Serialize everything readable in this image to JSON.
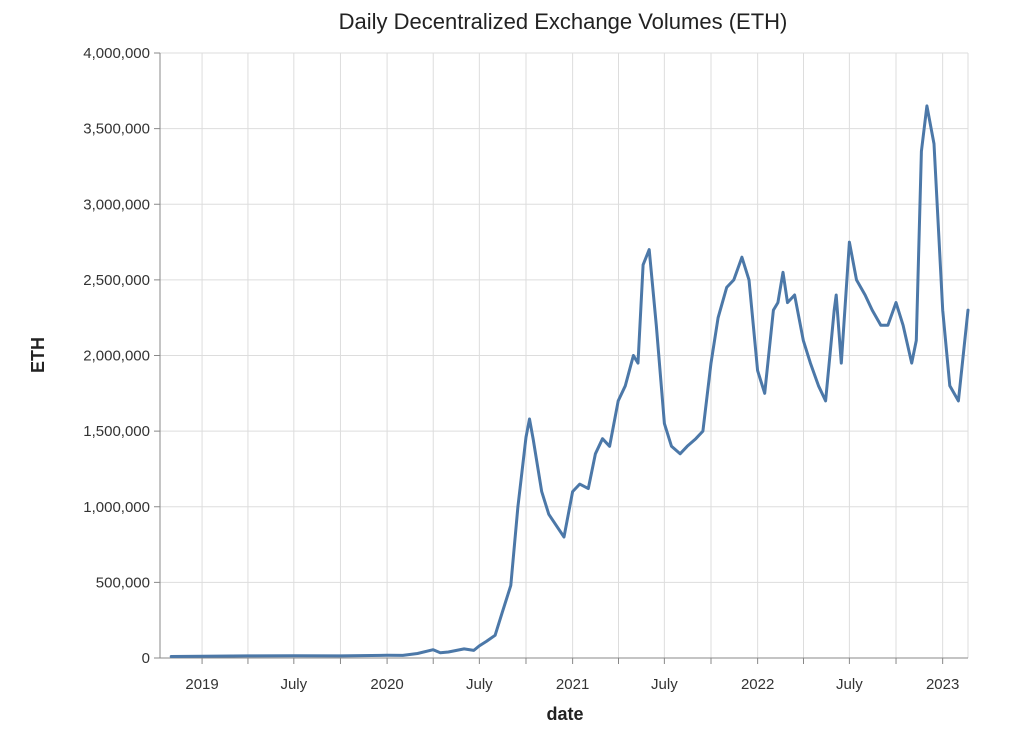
{
  "chart_data": {
    "type": "line",
    "title": "Daily Decentralized Exchange Volumes (ETH)",
    "xlabel": "date",
    "ylabel": "ETH",
    "xlim": [
      "2018-10-10",
      "2023-02-20"
    ],
    "ylim": [
      0,
      4000000
    ],
    "y_ticks": [
      0,
      500000,
      1000000,
      1500000,
      2000000,
      2500000,
      3000000,
      3500000,
      4000000
    ],
    "y_tick_labels": [
      "0",
      "500,000",
      "1,000,000",
      "1,500,000",
      "2,000,000",
      "2,500,000",
      "3,000,000",
      "3,500,000",
      "4,000,000"
    ],
    "x_ticks": [
      "2019-01-01",
      "2019-07-01",
      "2020-01-01",
      "2020-07-01",
      "2021-01-01",
      "2021-07-01",
      "2022-01-01",
      "2022-07-01",
      "2023-01-01"
    ],
    "x_tick_labels": [
      "2019",
      "July",
      "2020",
      "July",
      "2021",
      "July",
      "2022",
      "July",
      "2023"
    ],
    "grid": true,
    "series_color": "#4c78a8",
    "series": [
      {
        "x": [
          "2018-11-01",
          "2019-01-01",
          "2019-04-01",
          "2019-07-01",
          "2019-10-01",
          "2020-01-01",
          "2020-02-01",
          "2020-03-01",
          "2020-04-01",
          "2020-04-15",
          "2020-05-01",
          "2020-06-01",
          "2020-06-20",
          "2020-07-01",
          "2020-07-15",
          "2020-08-01",
          "2020-08-15",
          "2020-09-01",
          "2020-09-15",
          "2020-10-01",
          "2020-10-08",
          "2020-10-15",
          "2020-11-01",
          "2020-11-15",
          "2020-12-01",
          "2020-12-15",
          "2021-01-01",
          "2021-01-15",
          "2021-02-01",
          "2021-02-15",
          "2021-03-01",
          "2021-03-15",
          "2021-04-01",
          "2021-04-15",
          "2021-05-01",
          "2021-05-10",
          "2021-05-20",
          "2021-06-01",
          "2021-06-15",
          "2021-07-01",
          "2021-07-15",
          "2021-08-01",
          "2021-08-15",
          "2021-09-01",
          "2021-09-15",
          "2021-10-01",
          "2021-10-15",
          "2021-11-01",
          "2021-11-15",
          "2021-12-01",
          "2021-12-15",
          "2022-01-01",
          "2022-01-15",
          "2022-02-01",
          "2022-02-10",
          "2022-02-20",
          "2022-03-01",
          "2022-03-15",
          "2022-04-01",
          "2022-04-15",
          "2022-05-01",
          "2022-05-15",
          "2022-06-01",
          "2022-06-05",
          "2022-06-15",
          "2022-07-01",
          "2022-07-15",
          "2022-08-01",
          "2022-08-15",
          "2022-09-01",
          "2022-09-15",
          "2022-10-01",
          "2022-10-15",
          "2022-11-01",
          "2022-11-10",
          "2022-11-20",
          "2022-12-01",
          "2022-12-15",
          "2023-01-01",
          "2023-01-15",
          "2023-02-01",
          "2023-02-20"
        ],
        "y": [
          10000,
          12000,
          14000,
          15000,
          14000,
          18000,
          17000,
          30000,
          55000,
          35000,
          40000,
          60000,
          50000,
          80000,
          110000,
          150000,
          300000,
          480000,
          1000000,
          1460000,
          1580000,
          1450000,
          1100000,
          950000,
          870000,
          800000,
          1100000,
          1150000,
          1120000,
          1350000,
          1450000,
          1400000,
          1700000,
          1800000,
          2000000,
          1950000,
          2600000,
          2700000,
          2200000,
          1550000,
          1400000,
          1350000,
          1400000,
          1450000,
          1500000,
          1950000,
          2250000,
          2450000,
          2500000,
          2650000,
          2500000,
          1900000,
          1750000,
          2300000,
          2350000,
          2550000,
          2350000,
          2400000,
          2100000,
          1950000,
          1800000,
          1700000,
          2300000,
          2400000,
          1950000,
          2750000,
          2500000,
          2400000,
          2300000,
          2200000,
          2200000,
          2350000,
          2200000,
          1950000,
          2100000,
          3350000,
          3650000,
          3400000,
          2300000,
          1800000,
          1700000,
          2300000
        ]
      }
    ]
  }
}
